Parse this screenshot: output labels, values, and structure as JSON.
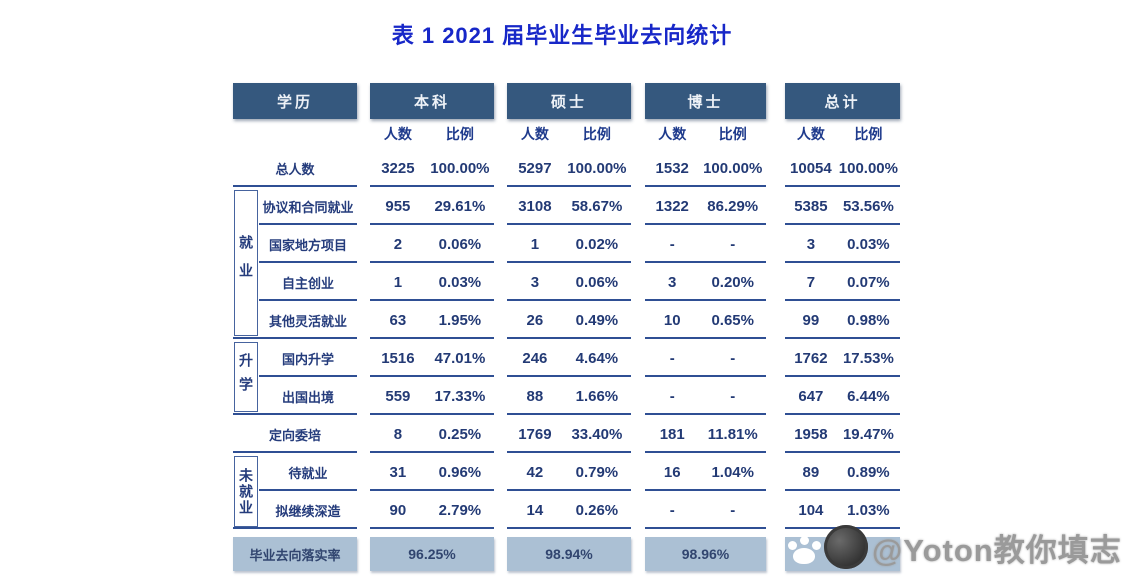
{
  "title": "表 1 2021 届毕业生毕业去向统计",
  "table": {
    "header": {
      "edu": "学历",
      "cols": [
        "本科",
        "硕士",
        "博士",
        "总计"
      ],
      "sub": {
        "count": "人数",
        "ratio": "比例"
      }
    },
    "groups": [
      {
        "label": "就业"
      },
      {
        "label": "升学"
      },
      {
        "label": "未就业"
      }
    ],
    "rows": [
      {
        "label": "总人数",
        "cells": [
          [
            "3225",
            "100.00%"
          ],
          [
            "5297",
            "100.00%"
          ],
          [
            "1532",
            "100.00%"
          ],
          [
            "10054",
            "100.00%"
          ]
        ]
      },
      {
        "label": "协议和合同就业",
        "cells": [
          [
            "955",
            "29.61%"
          ],
          [
            "3108",
            "58.67%"
          ],
          [
            "1322",
            "86.29%"
          ],
          [
            "5385",
            "53.56%"
          ]
        ]
      },
      {
        "label": "国家地方项目",
        "cells": [
          [
            "2",
            "0.06%"
          ],
          [
            "1",
            "0.02%"
          ],
          [
            "-",
            "-"
          ],
          [
            "3",
            "0.03%"
          ]
        ]
      },
      {
        "label": "自主创业",
        "cells": [
          [
            "1",
            "0.03%"
          ],
          [
            "3",
            "0.06%"
          ],
          [
            "3",
            "0.20%"
          ],
          [
            "7",
            "0.07%"
          ]
        ]
      },
      {
        "label": "其他灵活就业",
        "cells": [
          [
            "63",
            "1.95%"
          ],
          [
            "26",
            "0.49%"
          ],
          [
            "10",
            "0.65%"
          ],
          [
            "99",
            "0.98%"
          ]
        ]
      },
      {
        "label": "国内升学",
        "cells": [
          [
            "1516",
            "47.01%"
          ],
          [
            "246",
            "4.64%"
          ],
          [
            "-",
            "-"
          ],
          [
            "1762",
            "17.53%"
          ]
        ]
      },
      {
        "label": "出国出境",
        "cells": [
          [
            "559",
            "17.33%"
          ],
          [
            "88",
            "1.66%"
          ],
          [
            "-",
            "-"
          ],
          [
            "647",
            "6.44%"
          ]
        ]
      },
      {
        "label": "定向委培",
        "cells": [
          [
            "8",
            "0.25%"
          ],
          [
            "1769",
            "33.40%"
          ],
          [
            "181",
            "11.81%"
          ],
          [
            "1958",
            "19.47%"
          ]
        ]
      },
      {
        "label": "待就业",
        "cells": [
          [
            "31",
            "0.96%"
          ],
          [
            "42",
            "0.79%"
          ],
          [
            "16",
            "1.04%"
          ],
          [
            "89",
            "0.89%"
          ]
        ]
      },
      {
        "label": "拟继续深造",
        "cells": [
          [
            "90",
            "2.79%"
          ],
          [
            "14",
            "0.26%"
          ],
          [
            "-",
            "-"
          ],
          [
            "104",
            "1.03%"
          ]
        ]
      }
    ],
    "footer": {
      "label": "毕业去向落实率",
      "values": [
        "96.25%",
        "98.94%",
        "98.96%",
        ""
      ]
    }
  },
  "colors": {
    "title_blue": "#1727c8",
    "header_bg": "#35587e",
    "text_navy": "#253c7c",
    "line_navy": "#2f4f94",
    "footer_bg": "#abc0d4"
  },
  "watermark": {
    "text": "@Yoton教你填志",
    "icons": [
      "paw-icon",
      "avatar-icon"
    ]
  }
}
